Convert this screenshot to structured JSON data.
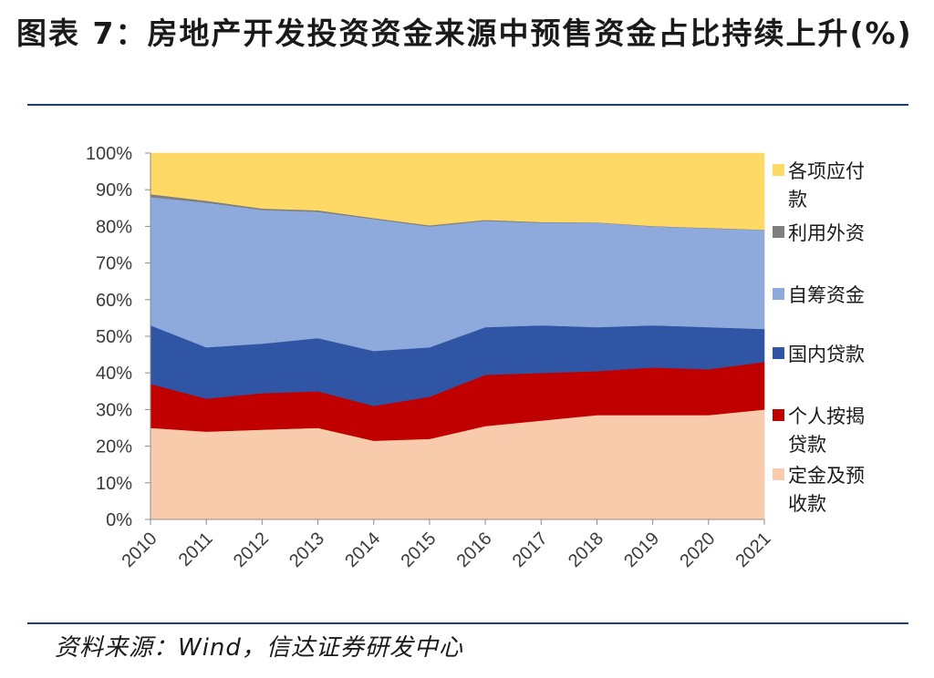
{
  "header": {
    "title": "图表 7：房地产开发投资资金来源中预售资金占比持续上升(%)"
  },
  "footer": {
    "source": "资料来源：Wind，信达证券研发中心"
  },
  "chart_data": {
    "type": "area",
    "stacked": true,
    "x": [
      "2010",
      "2011",
      "2012",
      "2013",
      "2014",
      "2015",
      "2016",
      "2017",
      "2018",
      "2019",
      "2020",
      "2021"
    ],
    "ylim": [
      0,
      100
    ],
    "yticks": [
      "0%",
      "10%",
      "20%",
      "30%",
      "40%",
      "50%",
      "60%",
      "70%",
      "80%",
      "90%",
      "100%"
    ],
    "legend_position": "right",
    "series": [
      {
        "name": "定金及预收款",
        "color": "#F8CBAD",
        "values": [
          25,
          24,
          24.5,
          25,
          21.5,
          22,
          25.5,
          27,
          28.5,
          28.5,
          28.5,
          30
        ]
      },
      {
        "name": "个人按揭贷款",
        "color": "#C00000",
        "values": [
          12,
          9,
          10,
          10,
          9.5,
          11.5,
          14,
          13,
          12,
          13,
          12.5,
          13
        ]
      },
      {
        "name": "国内贷款",
        "color": "#2F55A4",
        "values": [
          16,
          14,
          13.5,
          14.5,
          15,
          13.5,
          13,
          13,
          12,
          11.5,
          11.5,
          9
        ]
      },
      {
        "name": "自筹资金",
        "color": "#8EA9DB",
        "values": [
          35,
          39.5,
          36.5,
          34.5,
          36,
          33,
          29,
          28,
          28.5,
          27,
          27,
          27
        ]
      },
      {
        "name": "利用外资",
        "color": "#7F7F7F",
        "values": [
          0.8,
          0.5,
          0.4,
          0.4,
          0.3,
          0.3,
          0.3,
          0.2,
          0.1,
          0.1,
          0.1,
          0.1
        ]
      },
      {
        "name": "各项应付款",
        "color": "#FFD966",
        "values": [
          11.2,
          13,
          15.1,
          15.6,
          17.7,
          19.7,
          18.2,
          18.8,
          18.9,
          19.9,
          20.4,
          20.9
        ]
      }
    ],
    "legend": [
      {
        "series": 5,
        "lines": [
          "各项应付",
          "款"
        ]
      },
      {
        "series": 4,
        "lines": [
          "利用外资"
        ]
      },
      {
        "series": 3,
        "lines": [
          "自筹资金"
        ]
      },
      {
        "series": 2,
        "lines": [
          "国内贷款"
        ]
      },
      {
        "series": 1,
        "lines": [
          "个人按揭",
          "贷款"
        ]
      },
      {
        "series": 0,
        "lines": [
          "定金及预",
          "收款"
        ]
      }
    ]
  }
}
